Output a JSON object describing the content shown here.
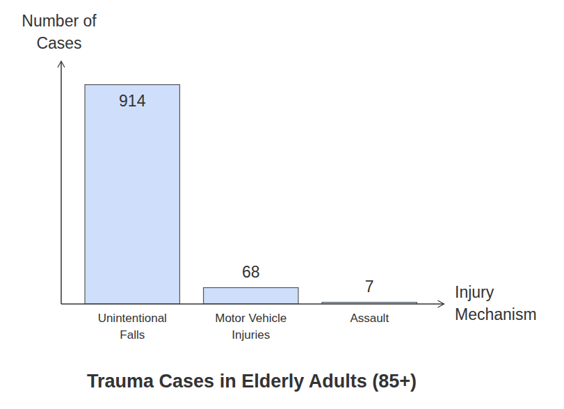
{
  "chart_data": {
    "type": "bar",
    "title": "Trauma Cases in Elderly Adults (85+)",
    "x_label": "Injury Mechanism",
    "y_label": "Number of Cases",
    "categories": [
      "Unintentional Falls",
      "Motor Vehicle Injuries",
      "Assault"
    ],
    "values": [
      914,
      68,
      7
    ],
    "color": "#cfdffb",
    "ylim": [
      0,
      1000
    ],
    "tick_labels": "x",
    "data_labels": true,
    "grid": false
  }
}
